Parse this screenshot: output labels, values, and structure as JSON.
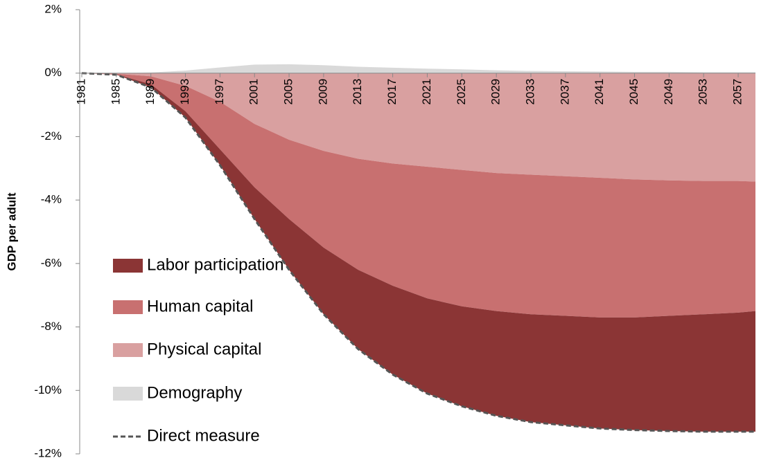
{
  "chart_data": {
    "type": "stacked-area",
    "y_label": "GDP per adult",
    "x": [
      1981,
      1985,
      1989,
      1993,
      1997,
      2001,
      2005,
      2009,
      2013,
      2017,
      2021,
      2025,
      2029,
      2033,
      2037,
      2041,
      2045,
      2049,
      2053,
      2057,
      2059
    ],
    "xlim": [
      1981,
      2059
    ],
    "xticks": [
      1981,
      1985,
      1989,
      1993,
      1997,
      2001,
      2005,
      2009,
      2013,
      2017,
      2021,
      2025,
      2029,
      2033,
      2037,
      2041,
      2045,
      2049,
      2053,
      2057
    ],
    "ylim": [
      -12,
      2
    ],
    "yticks": [
      {
        "value": -12,
        "label": "-12%"
      },
      {
        "value": -10,
        "label": "-10%"
      },
      {
        "value": -8,
        "label": "-8%"
      },
      {
        "value": -6,
        "label": "-6%"
      },
      {
        "value": -4,
        "label": "-4%"
      },
      {
        "value": -2,
        "label": "-2%"
      },
      {
        "value": 0,
        "label": "0%"
      },
      {
        "value": 2,
        "label": "2%"
      }
    ],
    "series": [
      {
        "name": "Labor participation",
        "color": "#8b3535",
        "kind": "area",
        "values": [
          0,
          -0.01,
          -0.1,
          -0.2,
          -0.5,
          -1.0,
          -1.6,
          -2.1,
          -2.5,
          -2.8,
          -3.0,
          -3.15,
          -3.3,
          -3.4,
          -3.45,
          -3.5,
          -3.55,
          -3.63,
          -3.7,
          -3.75,
          -3.8
        ]
      },
      {
        "name": "Human capital",
        "color": "#c87070",
        "kind": "area",
        "values": [
          0,
          -0.02,
          -0.25,
          -0.8,
          -1.5,
          -2.0,
          -2.5,
          -3.05,
          -3.5,
          -3.85,
          -4.15,
          -4.3,
          -4.35,
          -4.4,
          -4.4,
          -4.4,
          -4.35,
          -4.27,
          -4.2,
          -4.15,
          -4.08
        ]
      },
      {
        "name": "Physical capital",
        "color": "#d9a0a0",
        "kind": "area",
        "values": [
          0,
          -0.02,
          -0.1,
          -0.4,
          -0.9,
          -1.6,
          -2.1,
          -2.45,
          -2.7,
          -2.85,
          -2.95,
          -3.05,
          -3.15,
          -3.2,
          -3.25,
          -3.3,
          -3.35,
          -3.38,
          -3.4,
          -3.4,
          -3.42
        ]
      },
      {
        "name": "Demography",
        "color": "#d9d9d9",
        "kind": "area",
        "values": [
          0,
          0,
          0.02,
          0.08,
          0.18,
          0.27,
          0.28,
          0.25,
          0.2,
          0.17,
          0.14,
          0.12,
          0.09,
          0.07,
          0.06,
          0.05,
          0.04,
          0.04,
          0.03,
          0.03,
          0.03
        ]
      },
      {
        "name": "Direct measure",
        "color": "#555555",
        "kind": "line",
        "values": [
          0,
          -0.05,
          -0.45,
          -1.4,
          -2.9,
          -4.6,
          -6.2,
          -7.6,
          -8.7,
          -9.5,
          -10.1,
          -10.5,
          -10.8,
          -11.0,
          -11.1,
          -11.2,
          -11.25,
          -11.28,
          -11.3,
          -11.3,
          -11.3
        ]
      }
    ]
  }
}
